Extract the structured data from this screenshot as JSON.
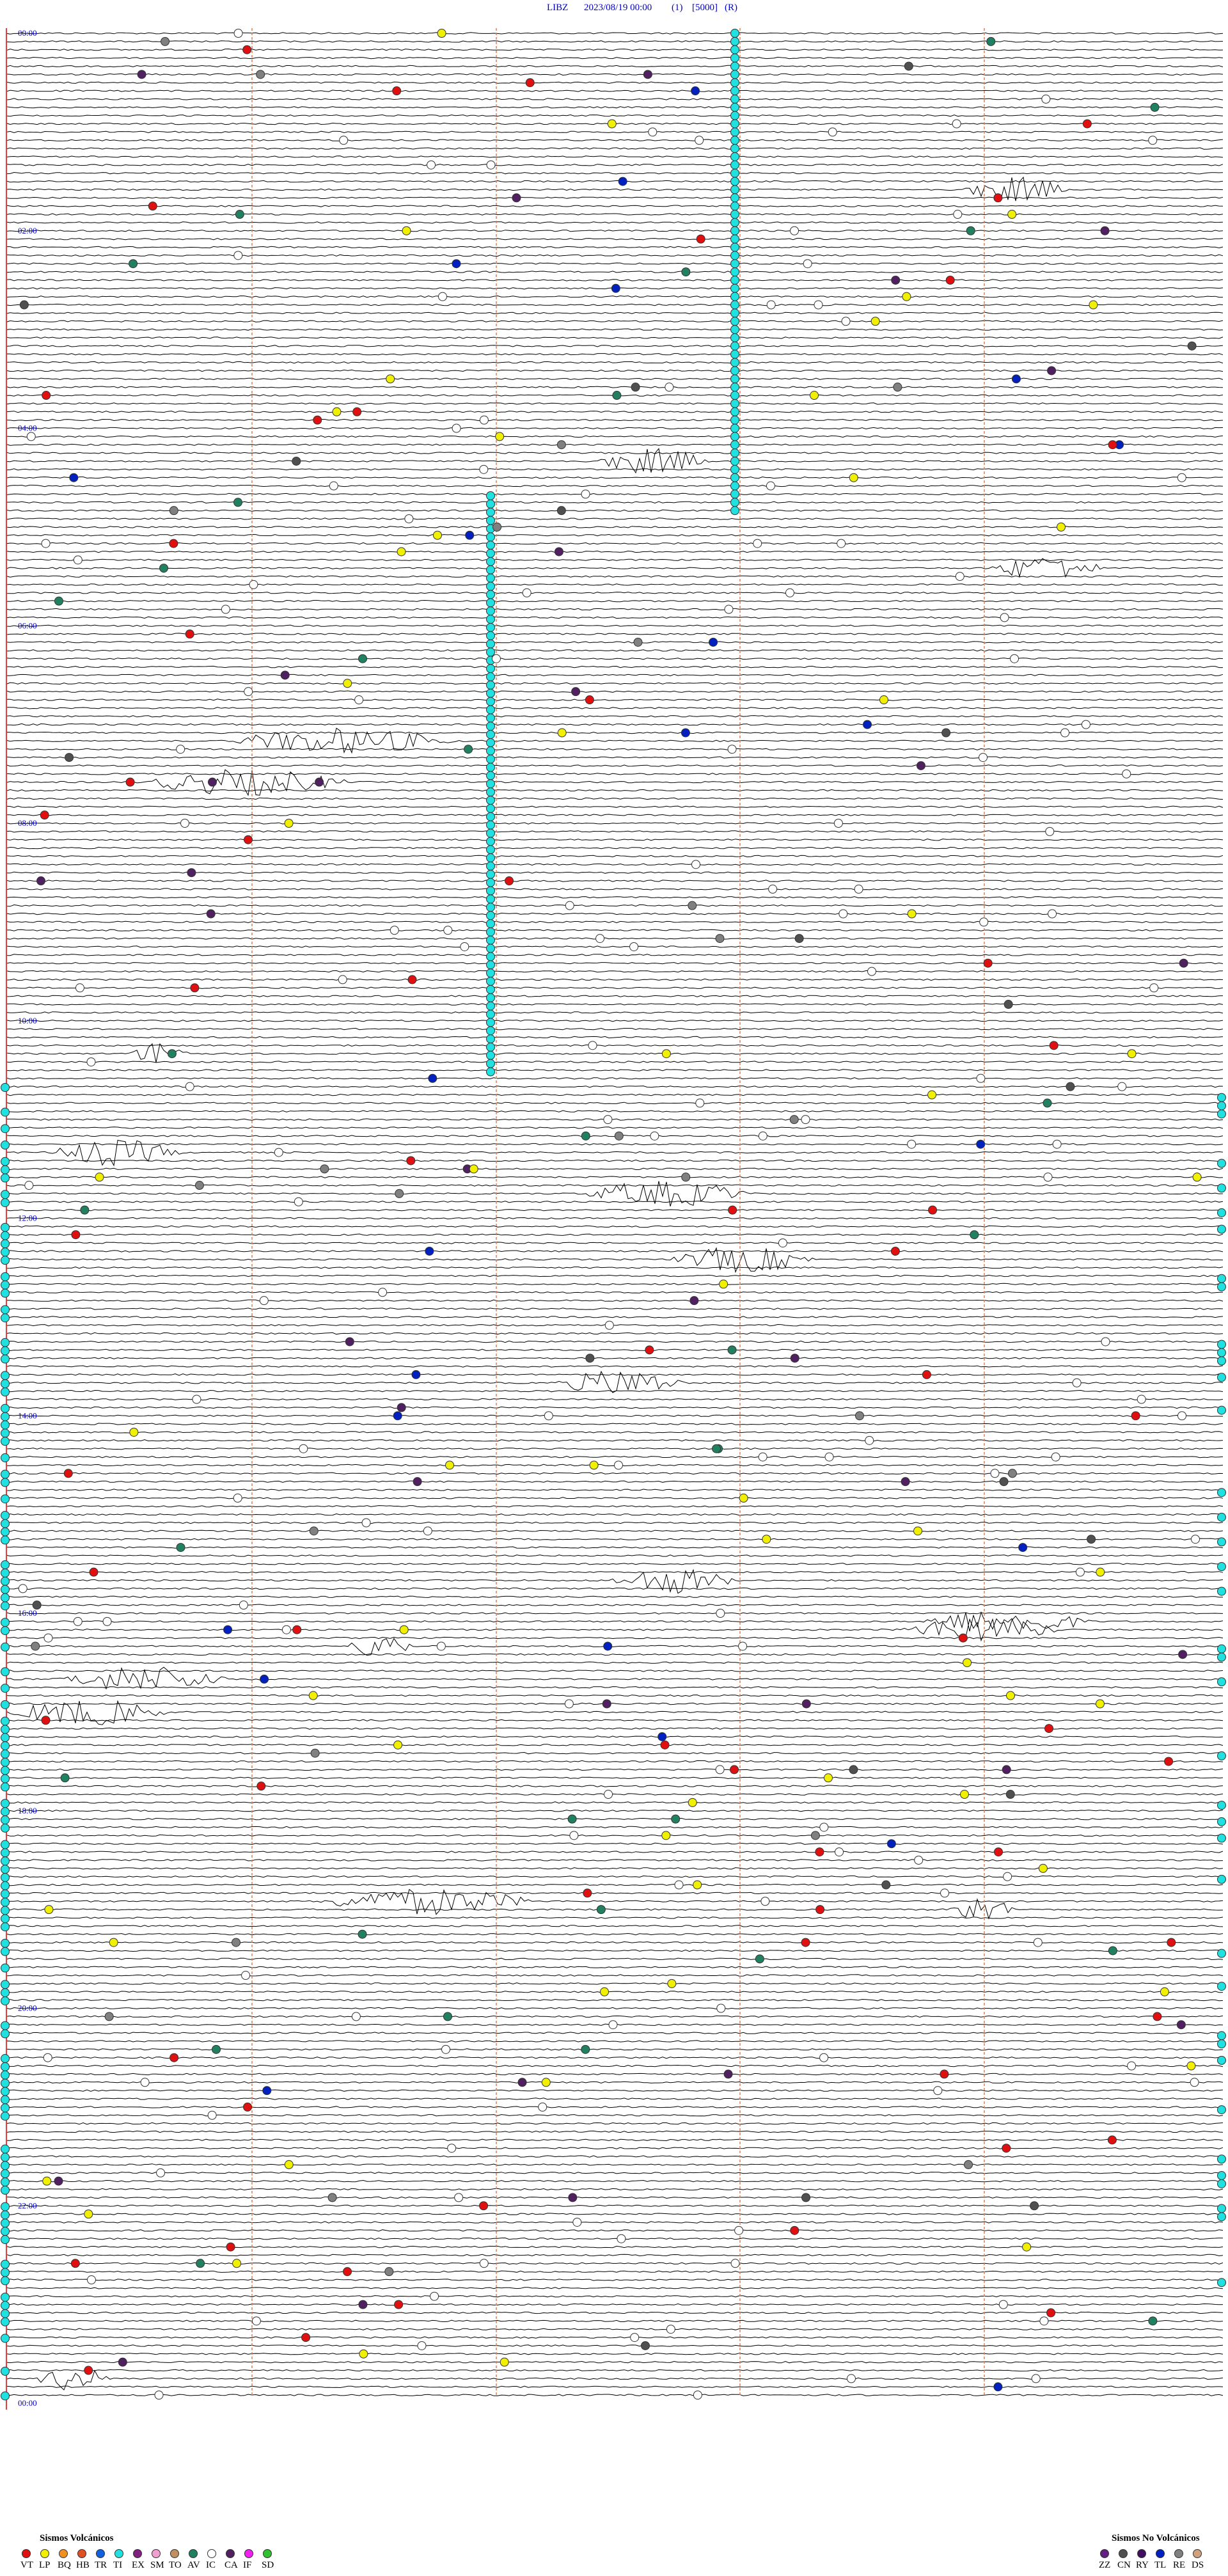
{
  "header": {
    "station": "LIBZ",
    "datetime": "2023/08/19 00:00",
    "channel": "(1)",
    "scale": "[5000]",
    "mode": "(R)"
  },
  "hour_labels": [
    "00:00",
    "02:00",
    "04:00",
    "06:00",
    "08:00",
    "10:00",
    "12:00",
    "14:00",
    "16:00",
    "18:00",
    "20:00",
    "22:00",
    "00:00"
  ],
  "legend": {
    "volcanic": {
      "title": "Sismos Volcánicos",
      "items": [
        {
          "name": "VT",
          "color": "#e01010"
        },
        {
          "name": "LP",
          "color": "#f0f000"
        },
        {
          "name": "BQ",
          "color": "#f09020"
        },
        {
          "name": "HB",
          "color": "#e05020"
        },
        {
          "name": "TR",
          "color": "#1060e0"
        },
        {
          "name": "TI",
          "color": "#20e0e0"
        },
        {
          "name": "EX",
          "color": "#802080"
        },
        {
          "name": "SM",
          "color": "#f0a0d0"
        },
        {
          "name": "TO",
          "color": "#c09060"
        },
        {
          "name": "AV",
          "color": "#208060"
        },
        {
          "name": "IC",
          "color": "#ffffff"
        },
        {
          "name": "CA",
          "color": "#502060"
        },
        {
          "name": "IF",
          "color": "#f020f0"
        },
        {
          "name": "SD",
          "color": "#30c030"
        }
      ]
    },
    "non_volcanic": {
      "title": "Sismos No Volcánicos",
      "items": [
        {
          "name": "ZZ",
          "color": "#602080"
        },
        {
          "name": "CN",
          "color": "#505050"
        },
        {
          "name": "RY",
          "color": "#401060"
        },
        {
          "name": "TL",
          "color": "#0020c0"
        },
        {
          "name": "RE",
          "color": "#808080"
        },
        {
          "name": "DS",
          "color": "#d0a080"
        }
      ]
    }
  }
}
